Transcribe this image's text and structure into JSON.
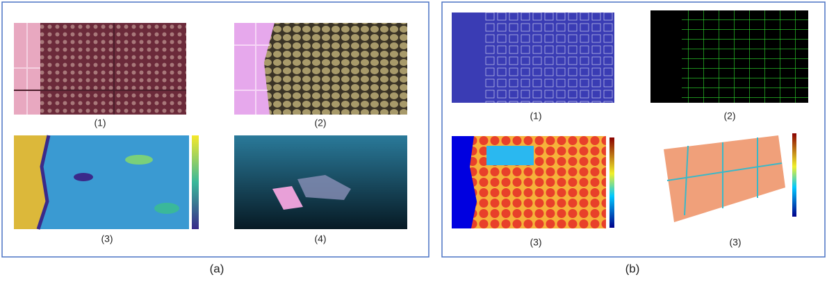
{
  "panels": [
    {
      "label": "(a)",
      "subfigures": [
        {
          "label": "(1)"
        },
        {
          "label": "(2)"
        },
        {
          "label": "(3)"
        },
        {
          "label": "(4)"
        }
      ]
    },
    {
      "label": "(b)",
      "subfigures": [
        {
          "label": "(1)"
        },
        {
          "label": "(2)"
        },
        {
          "label": "(3)"
        },
        {
          "label": "(3)"
        }
      ]
    }
  ]
}
